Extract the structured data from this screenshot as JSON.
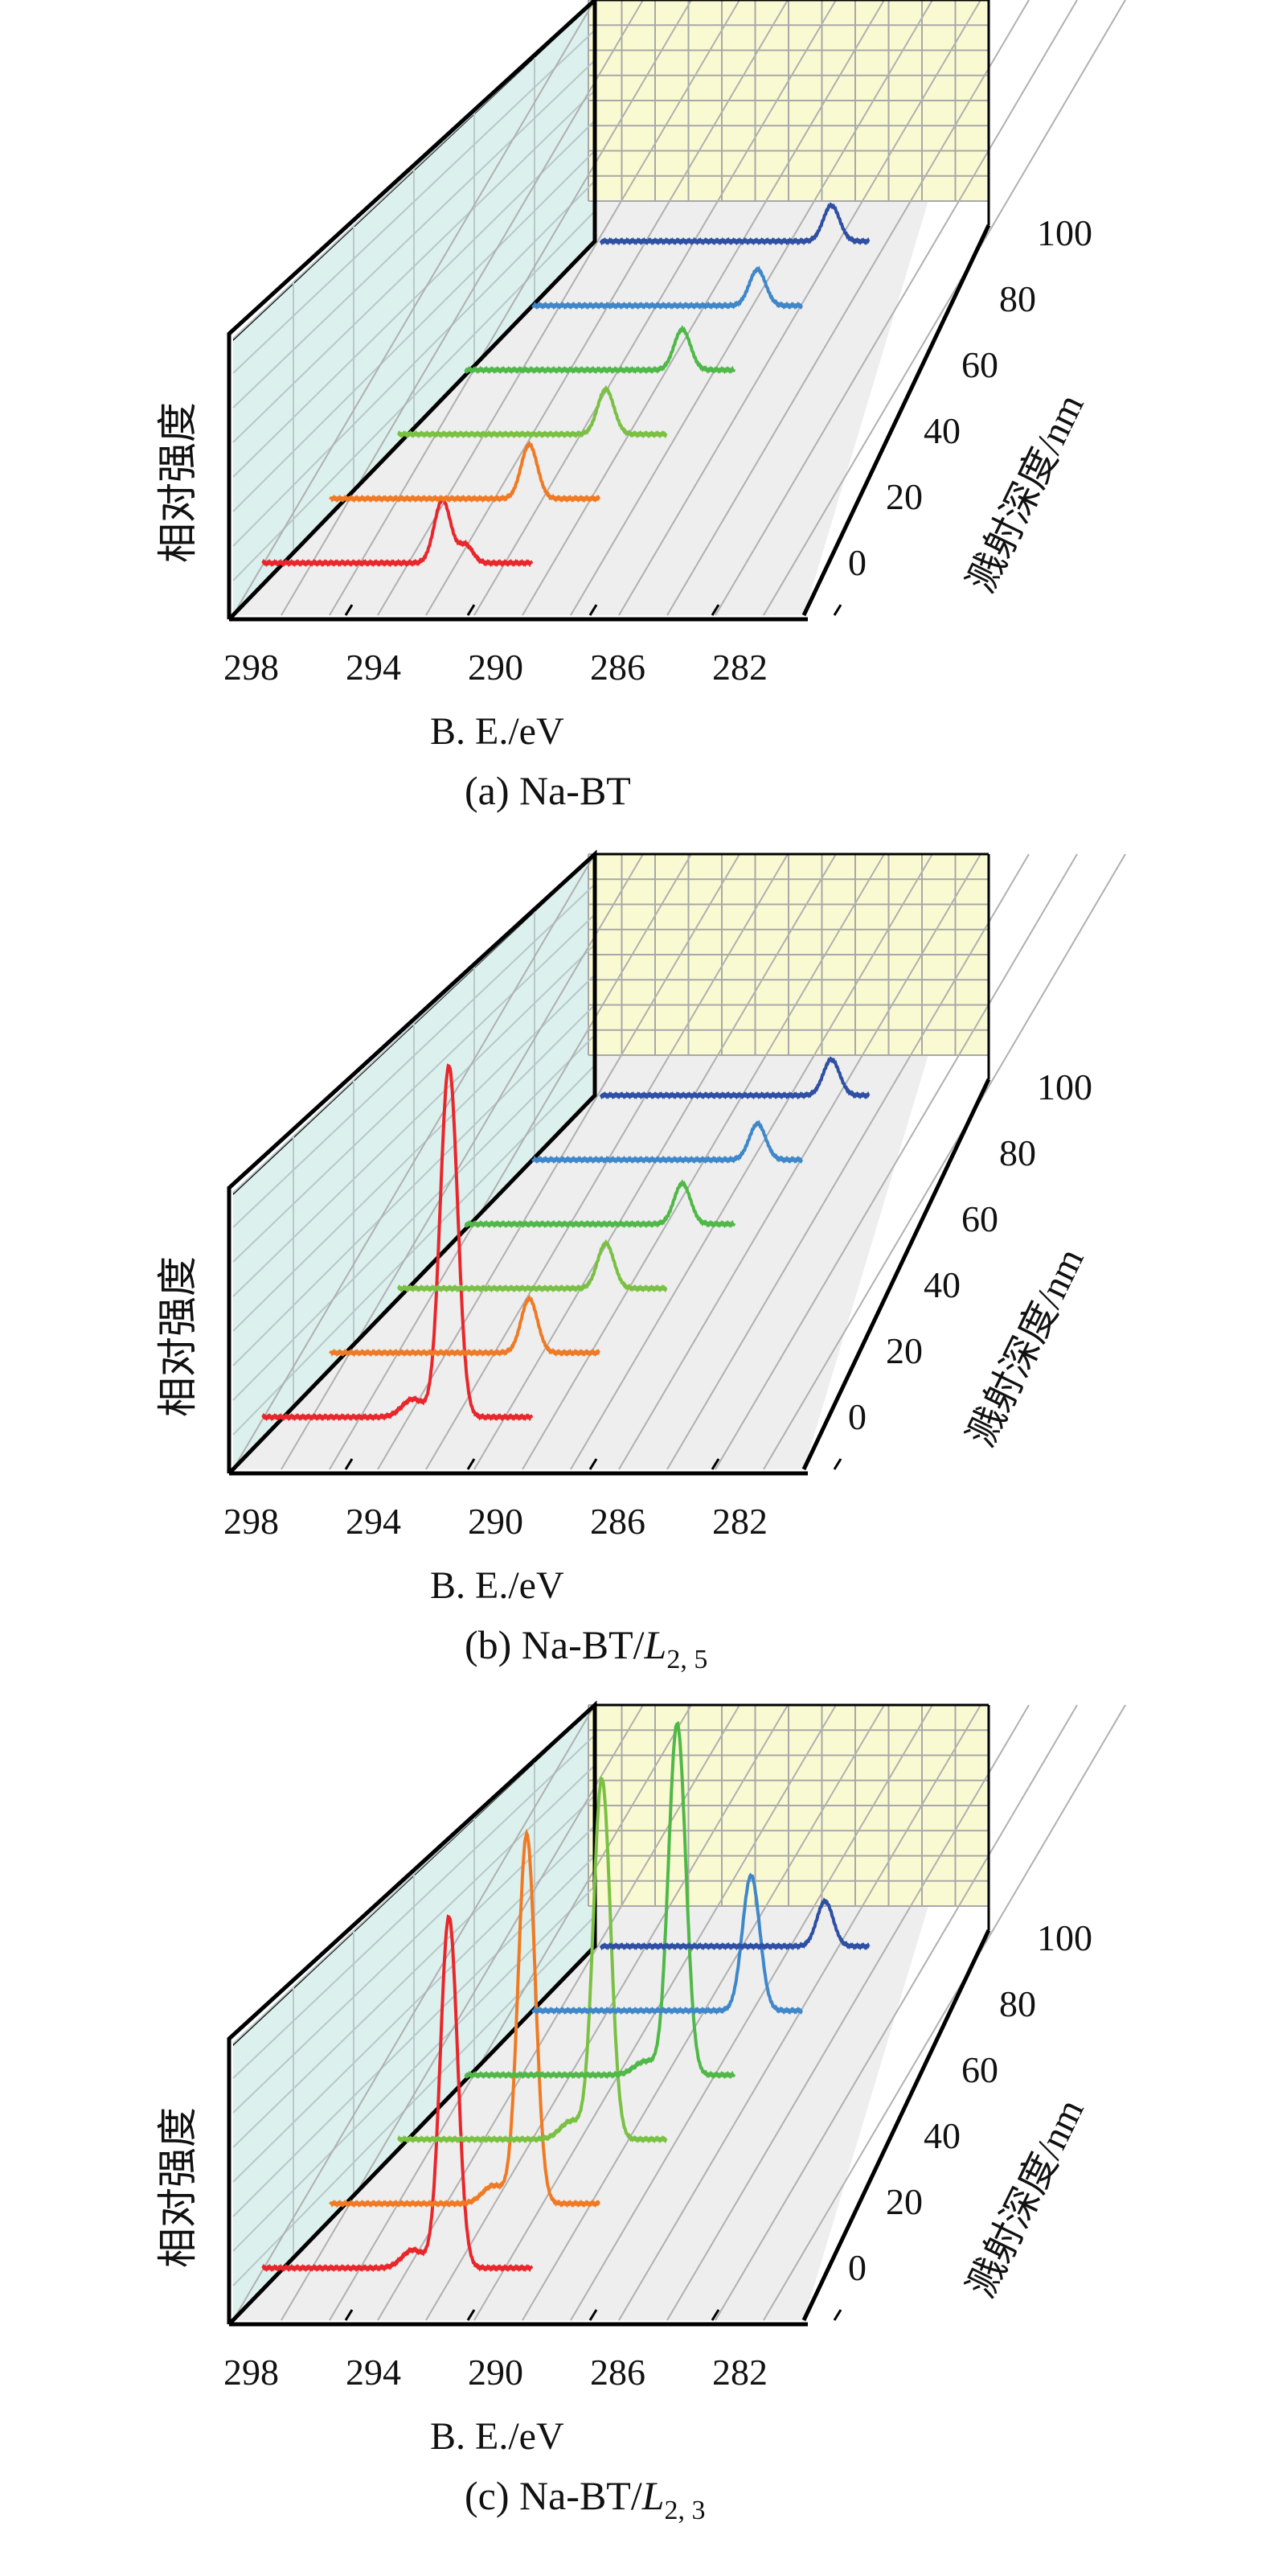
{
  "chart_data": [
    {
      "type": "line",
      "caption": "(a) Na-BT",
      "caption_sub": "",
      "xlabel": "B. E./eV",
      "ylabel": "相对强度",
      "zlabel": "溅射深度/nm",
      "x_ticks": [
        "298",
        "294",
        "290",
        "286",
        "282"
      ],
      "depth_ticks": [
        "0",
        "20",
        "40",
        "60",
        "80",
        "100"
      ],
      "xlim": [
        299,
        277
      ],
      "series": [
        {
          "depth": 0,
          "color": "#e8262b",
          "peaks": [
            {
              "center": 284.5,
              "height": 0.14,
              "width": 0.9
            },
            {
              "center": 282.7,
              "height": 0.04,
              "width": 0.8
            }
          ]
        },
        {
          "depth": 20,
          "color": "#f07a24",
          "peaks": [
            {
              "center": 283.0,
              "height": 0.12,
              "width": 0.9
            }
          ]
        },
        {
          "depth": 40,
          "color": "#7ac143",
          "peaks": [
            {
              "center": 282.3,
              "height": 0.1,
              "width": 0.9
            }
          ]
        },
        {
          "depth": 60,
          "color": "#4fb848",
          "peaks": [
            {
              "center": 281.6,
              "height": 0.09,
              "width": 0.9
            }
          ]
        },
        {
          "depth": 80,
          "color": "#3f87c9",
          "peaks": [
            {
              "center": 281.0,
              "height": 0.08,
              "width": 0.9
            }
          ]
        },
        {
          "depth": 100,
          "color": "#2e4fa3",
          "peaks": [
            {
              "center": 280.5,
              "height": 0.08,
              "width": 0.9
            }
          ]
        }
      ]
    },
    {
      "type": "line",
      "caption": "(b) Na-BT/",
      "caption_sub": "2, 5",
      "xlabel": "B. E./eV",
      "ylabel": "相对强度",
      "zlabel": "溅射深度/nm",
      "x_ticks": [
        "298",
        "294",
        "290",
        "286",
        "282"
      ],
      "depth_ticks": [
        "0",
        "20",
        "40",
        "60",
        "80",
        "100"
      ],
      "xlim": [
        299,
        277
      ],
      "series": [
        {
          "depth": 0,
          "color": "#e8262b",
          "peaks": [
            {
              "center": 284.0,
              "height": 0.78,
              "width": 0.95
            },
            {
              "center": 286.8,
              "height": 0.04,
              "width": 1.2
            }
          ]
        },
        {
          "depth": 20,
          "color": "#f07a24",
          "peaks": [
            {
              "center": 283.0,
              "height": 0.12,
              "width": 0.9
            }
          ]
        },
        {
          "depth": 40,
          "color": "#7ac143",
          "peaks": [
            {
              "center": 282.3,
              "height": 0.1,
              "width": 0.9
            }
          ]
        },
        {
          "depth": 60,
          "color": "#4fb848",
          "peaks": [
            {
              "center": 281.6,
              "height": 0.09,
              "width": 0.9
            }
          ]
        },
        {
          "depth": 80,
          "color": "#3f87c9",
          "peaks": [
            {
              "center": 281.0,
              "height": 0.08,
              "width": 0.9
            }
          ]
        },
        {
          "depth": 100,
          "color": "#2e4fa3",
          "peaks": [
            {
              "center": 280.5,
              "height": 0.08,
              "width": 0.9
            }
          ]
        }
      ]
    },
    {
      "type": "line",
      "caption": "(c) Na-BT/",
      "caption_sub": "2, 3",
      "xlabel": "B. E./eV",
      "ylabel": "相对强度",
      "zlabel": "溅射深度/nm",
      "x_ticks": [
        "298",
        "294",
        "290",
        "286",
        "282"
      ],
      "depth_ticks": [
        "0",
        "20",
        "40",
        "60",
        "80",
        "100"
      ],
      "xlim": [
        299,
        277
      ],
      "series": [
        {
          "depth": 0,
          "color": "#e8262b",
          "peaks": [
            {
              "center": 284.0,
              "height": 0.78,
              "width": 0.95
            },
            {
              "center": 286.8,
              "height": 0.04,
              "width": 1.2
            }
          ]
        },
        {
          "depth": 20,
          "color": "#f07a24",
          "peaks": [
            {
              "center": 283.2,
              "height": 0.82,
              "width": 0.95
            },
            {
              "center": 285.8,
              "height": 0.04,
              "width": 1.2
            }
          ]
        },
        {
          "depth": 40,
          "color": "#7ac143",
          "peaks": [
            {
              "center": 282.6,
              "height": 0.8,
              "width": 0.95
            },
            {
              "center": 285.0,
              "height": 0.04,
              "width": 1.2
            }
          ]
        },
        {
          "depth": 60,
          "color": "#4fb848",
          "peaks": [
            {
              "center": 282.0,
              "height": 0.78,
              "width": 0.95
            },
            {
              "center": 284.5,
              "height": 0.03,
              "width": 1.2
            }
          ]
        },
        {
          "depth": 80,
          "color": "#3f87c9",
          "peaks": [
            {
              "center": 281.5,
              "height": 0.3,
              "width": 0.95
            }
          ]
        },
        {
          "depth": 100,
          "color": "#2e4fa3",
          "peaks": [
            {
              "center": 281.0,
              "height": 0.1,
              "width": 0.9
            }
          ]
        }
      ]
    }
  ]
}
